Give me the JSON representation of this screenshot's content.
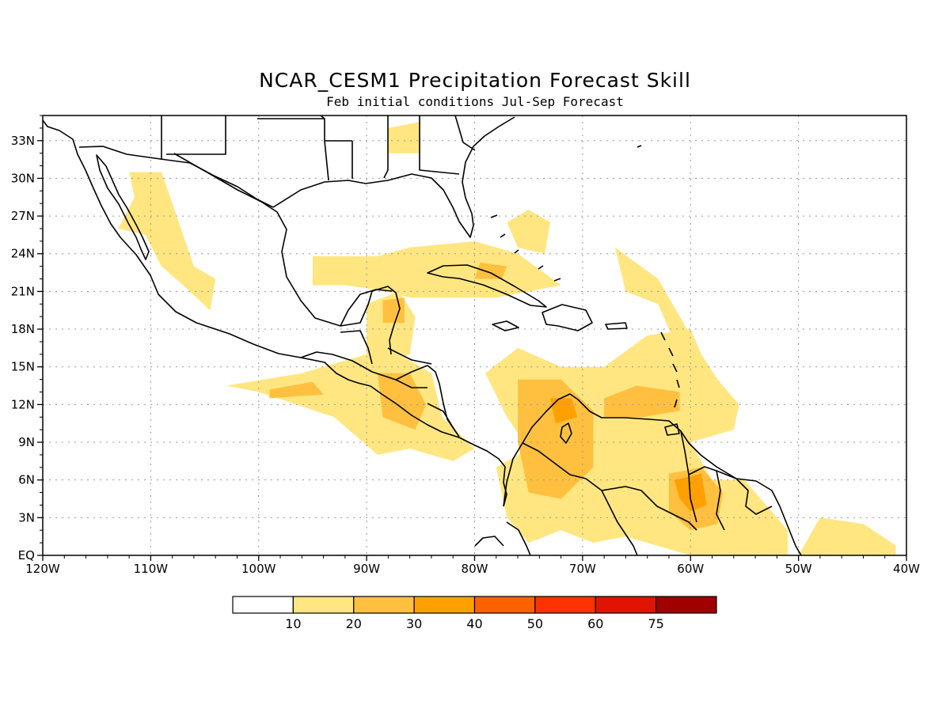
{
  "title": "NCAR_CESM1 Precipitation Forecast Skill",
  "subtitle": "Feb initial conditions  Jul-Sep Forecast",
  "axes": {
    "lon_labels": [
      "120W",
      "110W",
      "100W",
      "90W",
      "80W",
      "70W",
      "60W",
      "50W",
      "40W"
    ],
    "lat_labels": [
      "EQ",
      "3N",
      "6N",
      "9N",
      "12N",
      "15N",
      "18N",
      "21N",
      "24N",
      "27N",
      "30N",
      "33N"
    ],
    "lon_range": [
      -120,
      -40
    ],
    "lat_range": [
      0,
      35
    ],
    "grid": "dotted"
  },
  "colorbar": {
    "labels": [
      "10",
      "20",
      "30",
      "40",
      "50",
      "60",
      "75"
    ],
    "colors": [
      "#ffffff",
      "#ffe680",
      "#ffc040",
      "#ffa000",
      "#ff6000",
      "#ff3200",
      "#e01400",
      "#a00000"
    ]
  },
  "chart_data": {
    "type": "heatmap",
    "title": "NCAR_CESM1 Precipitation Forecast Skill",
    "subtitle": "Feb initial conditions  Jul-Sep Forecast",
    "xlim": [
      -120,
      -40
    ],
    "ylim": [
      0,
      35
    ],
    "legend": "bottom",
    "levels": [
      10,
      20,
      30,
      40,
      50,
      60,
      75
    ],
    "regions": [
      {
        "level": 10,
        "lonlat": [
          [
            -112,
            30.5
          ],
          [
            -109,
            30.5
          ],
          [
            -108,
            28
          ],
          [
            -106,
            23
          ],
          [
            -104,
            22
          ],
          [
            -104.5,
            19.5
          ],
          [
            -107,
            21.5
          ],
          [
            -109,
            23
          ],
          [
            -110.5,
            25.5
          ],
          [
            -113,
            26
          ],
          [
            -111.5,
            28.5
          ]
        ]
      },
      {
        "level": 10,
        "lonlat": [
          [
            -95,
            23.8
          ],
          [
            -89,
            23.8
          ],
          [
            -86,
            24.5
          ],
          [
            -80,
            25
          ],
          [
            -76,
            24
          ],
          [
            -72,
            21.5
          ],
          [
            -78,
            20.5
          ],
          [
            -82,
            20.5
          ],
          [
            -86,
            20.5
          ],
          [
            -88,
            21
          ],
          [
            -92,
            21.5
          ],
          [
            -95,
            21.5
          ]
        ]
      },
      {
        "level": 10,
        "lonlat": [
          [
            -90,
            20
          ],
          [
            -87,
            21
          ],
          [
            -85.5,
            19
          ],
          [
            -86,
            16
          ],
          [
            -89,
            15
          ],
          [
            -90,
            16
          ]
        ]
      },
      {
        "level": 10,
        "lonlat": [
          [
            -103,
            13.5
          ],
          [
            -96,
            14.5
          ],
          [
            -92,
            15.5
          ],
          [
            -88,
            16.5
          ],
          [
            -84,
            14.5
          ],
          [
            -83,
            11
          ],
          [
            -80,
            8.5
          ],
          [
            -82,
            7.5
          ],
          [
            -86,
            8.5
          ],
          [
            -89,
            8
          ],
          [
            -93,
            11
          ],
          [
            -100,
            13
          ]
        ]
      },
      {
        "level": 10,
        "lonlat": [
          [
            -75,
            8.5
          ],
          [
            -77,
            11
          ],
          [
            -79,
            14.5
          ],
          [
            -76,
            16.5
          ],
          [
            -72,
            15
          ],
          [
            -68,
            15
          ],
          [
            -64,
            17.5
          ],
          [
            -60,
            18
          ],
          [
            -59,
            16
          ],
          [
            -57.5,
            14
          ],
          [
            -55.5,
            12
          ],
          [
            -56,
            10
          ],
          [
            -60,
            9
          ],
          [
            -58,
            6
          ],
          [
            -55,
            6
          ],
          [
            -53,
            4
          ],
          [
            -51,
            2
          ],
          [
            -51,
            0
          ],
          [
            -60,
            0
          ],
          [
            -66,
            1.5
          ],
          [
            -69,
            1
          ],
          [
            -72,
            2
          ],
          [
            -75,
            1
          ],
          [
            -77,
            3
          ],
          [
            -78,
            7
          ]
        ]
      },
      {
        "level": 10,
        "lonlat": [
          [
            -75,
            27.5
          ],
          [
            -73,
            26.5
          ],
          [
            -73.5,
            24
          ],
          [
            -76,
            24.5
          ],
          [
            -77,
            26.5
          ]
        ]
      },
      {
        "level": 10,
        "lonlat": [
          [
            -67,
            24.5
          ],
          [
            -66,
            21
          ],
          [
            -63,
            20
          ],
          [
            -61,
            16
          ],
          [
            -59,
            16
          ],
          [
            -63,
            22
          ]
        ]
      },
      {
        "level": 10,
        "lonlat": [
          [
            -88,
            34
          ],
          [
            -85,
            34.5
          ],
          [
            -85,
            32
          ],
          [
            -88,
            32
          ]
        ]
      },
      {
        "level": 10,
        "lonlat": [
          [
            -48,
            3
          ],
          [
            -44,
            2.5
          ],
          [
            -41,
            0.8
          ],
          [
            -41,
            0
          ],
          [
            -50,
            0
          ]
        ]
      },
      {
        "level": 20,
        "lonlat": [
          [
            -88.5,
            20.3
          ],
          [
            -86.5,
            20.5
          ],
          [
            -86.5,
            18.5
          ],
          [
            -88.5,
            18.5
          ]
        ]
      },
      {
        "level": 20,
        "lonlat": [
          [
            -99,
            13.2
          ],
          [
            -95,
            13.8
          ],
          [
            -94,
            12.8
          ],
          [
            -99,
            12.5
          ]
        ]
      },
      {
        "level": 20,
        "lonlat": [
          [
            -89,
            14.5
          ],
          [
            -86,
            14.5
          ],
          [
            -84.5,
            12
          ],
          [
            -85.5,
            10
          ],
          [
            -88.5,
            11
          ]
        ]
      },
      {
        "level": 20,
        "lonlat": [
          [
            -76,
            14
          ],
          [
            -72,
            14
          ],
          [
            -69,
            11.5
          ],
          [
            -69,
            7
          ],
          [
            -72,
            4.5
          ],
          [
            -75,
            5
          ],
          [
            -76,
            9
          ]
        ]
      },
      {
        "level": 20,
        "lonlat": [
          [
            -68,
            12.5
          ],
          [
            -65,
            13.5
          ],
          [
            -61,
            13
          ],
          [
            -61,
            11.5
          ],
          [
            -64.5,
            11
          ],
          [
            -68,
            11
          ]
        ]
      },
      {
        "level": 20,
        "lonlat": [
          [
            -62,
            6.5
          ],
          [
            -59,
            7
          ],
          [
            -57,
            5
          ],
          [
            -57.5,
            2.5
          ],
          [
            -60,
            2
          ],
          [
            -62,
            3.5
          ]
        ]
      },
      {
        "level": 20,
        "lonlat": [
          [
            -79.5,
            23.3
          ],
          [
            -77,
            23
          ],
          [
            -77.5,
            22
          ],
          [
            -80,
            22
          ]
        ]
      },
      {
        "level": 30,
        "lonlat": [
          [
            -73,
            12.5
          ],
          [
            -71,
            12.5
          ],
          [
            -70.5,
            11
          ],
          [
            -72.5,
            10.5
          ]
        ]
      },
      {
        "level": 30,
        "lonlat": [
          [
            -61.5,
            6
          ],
          [
            -59,
            6.5
          ],
          [
            -58.5,
            4
          ],
          [
            -60,
            3.5
          ],
          [
            -61,
            4.5
          ]
        ]
      }
    ]
  }
}
